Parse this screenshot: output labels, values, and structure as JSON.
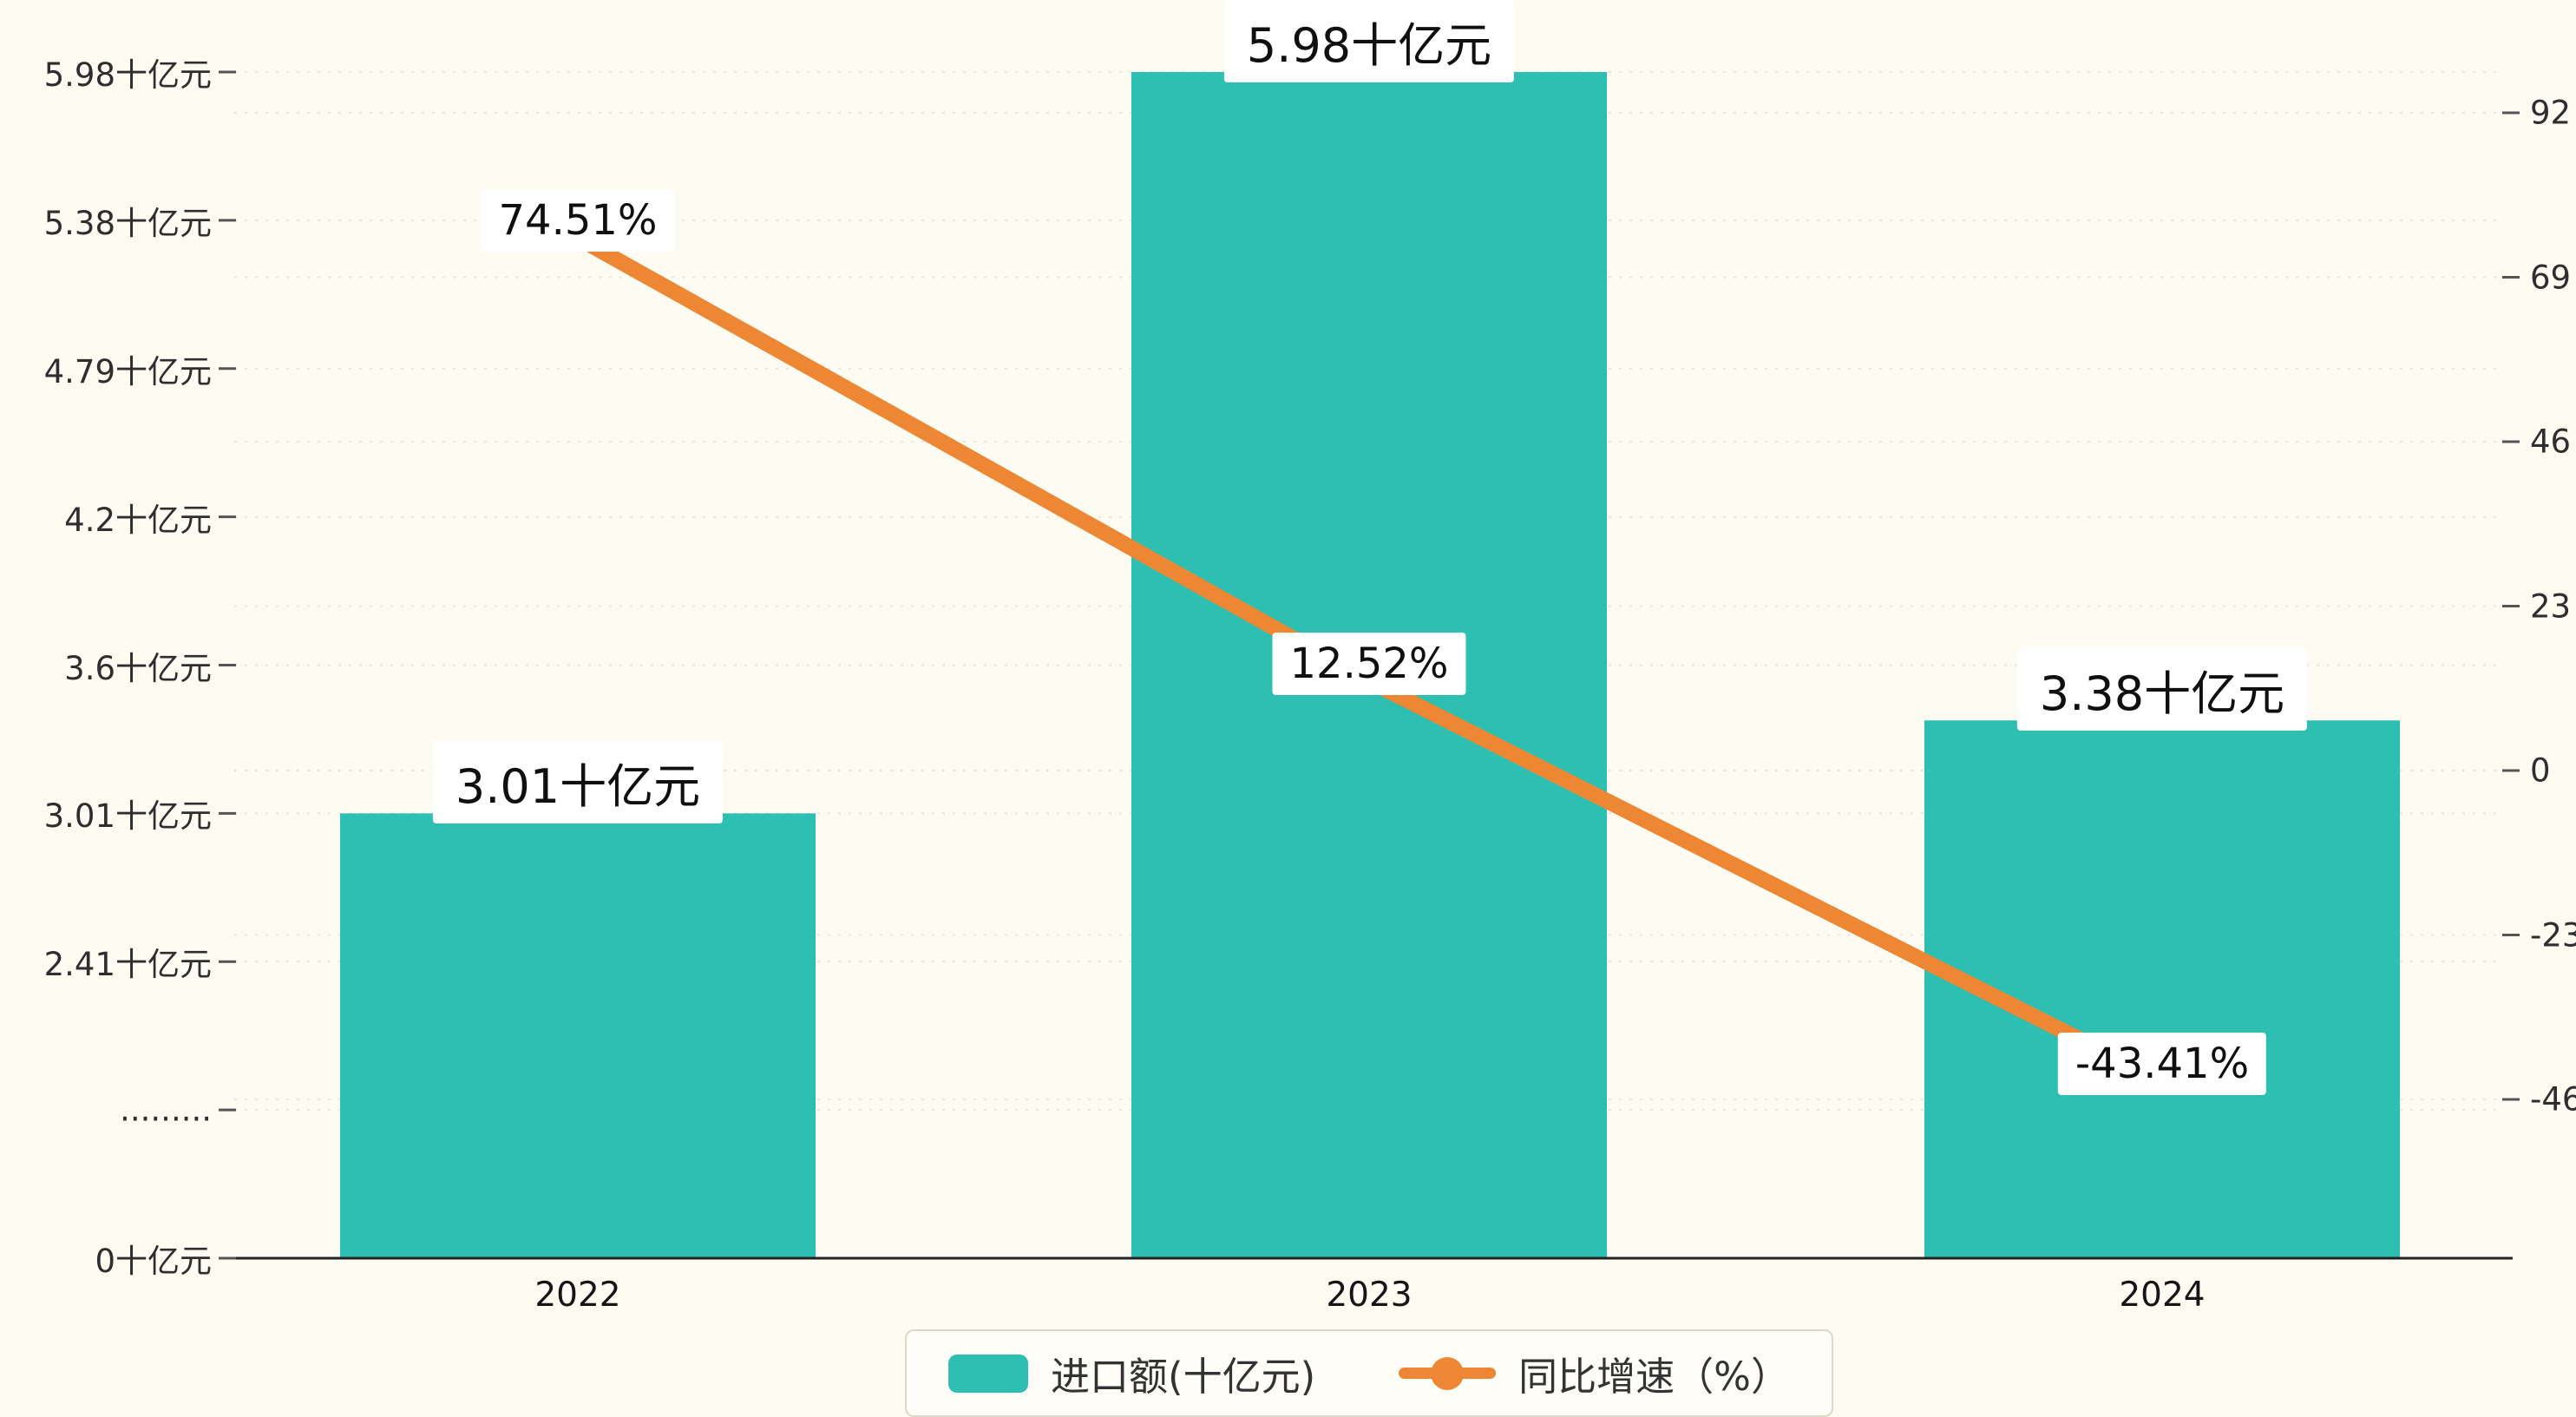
{
  "page": {
    "background": "#fdfbf2"
  },
  "chart_data": {
    "type": "bar",
    "combo": "bar + line (dual axis)",
    "categories": [
      "2022",
      "2023",
      "2024"
    ],
    "series": [
      {
        "name": "进口额(十亿元)",
        "type": "bar",
        "axis": "left",
        "values": [
          3.01,
          5.98,
          3.38
        ],
        "value_labels": [
          "3.01十亿元",
          "5.98十亿元",
          "3.38十亿元"
        ],
        "color": "#2ebfb3"
      },
      {
        "name": "同比增速（%）",
        "type": "line",
        "axis": "right",
        "values": [
          74.51,
          12.52,
          -43.41
        ],
        "value_labels": [
          "74.51%",
          "12.52%",
          "-43.41%"
        ],
        "color": "#ed8733"
      }
    ],
    "left_axis": {
      "title": "",
      "tick_labels_bottom_to_top": [
        "0十亿元",
        ".........",
        "2.41十亿元",
        "3.01十亿元",
        "3.6十亿元",
        "4.2十亿元",
        "4.79十亿元",
        "5.38十亿元",
        "5.98十亿元"
      ],
      "tick_values_bottom_to_top": [
        0,
        null,
        2.41,
        3.01,
        3.6,
        4.2,
        4.79,
        5.38,
        5.98
      ],
      "note": "non-linear axis with break (dotted tick) between 0 and 2.41"
    },
    "right_axis": {
      "tick_labels_top_to_bottom": [
        "92",
        "69",
        "46",
        "23",
        "0",
        "-23",
        "-46"
      ],
      "min": -46,
      "max": 92,
      "step": 23
    },
    "legend": {
      "position": "bottom-center",
      "items": [
        "进口额(十亿元)",
        "同比增速（%）"
      ]
    },
    "grid": "horizontal dashed, on",
    "colors": {
      "bar": "#2ebfb3",
      "line": "#ed8733",
      "background": "#fdfbf2",
      "label_box": "#ffffff",
      "axis": "#222222",
      "tick": "#555555",
      "grid": "#e9e6d9"
    }
  }
}
